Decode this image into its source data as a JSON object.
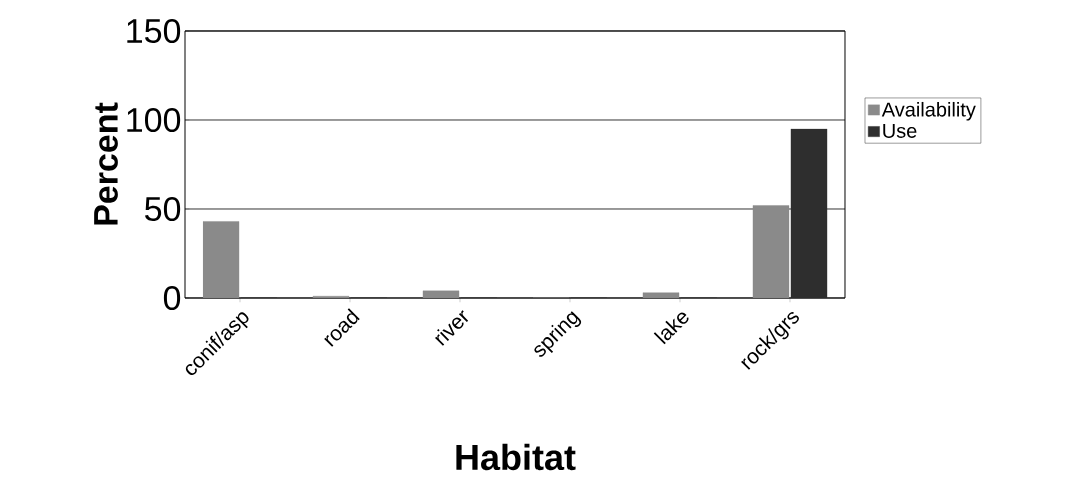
{
  "chart_data": {
    "type": "bar",
    "xlabel": "Habitat",
    "ylabel": "Percent",
    "categories": [
      "conif/asp",
      "road",
      "river",
      "spring",
      "lake",
      "rock/grs"
    ],
    "series": [
      {
        "name": "Availability",
        "color": "#8a8a8a",
        "values": [
          43,
          1,
          4,
          0,
          3,
          52
        ]
      },
      {
        "name": "Use",
        "color": "#2e2e2e",
        "values": [
          0,
          0,
          0,
          0,
          0,
          95
        ]
      }
    ],
    "ylim": [
      0,
      150
    ],
    "yticks": [
      0,
      50,
      100,
      150
    ],
    "grid": "y",
    "legend": "right"
  }
}
